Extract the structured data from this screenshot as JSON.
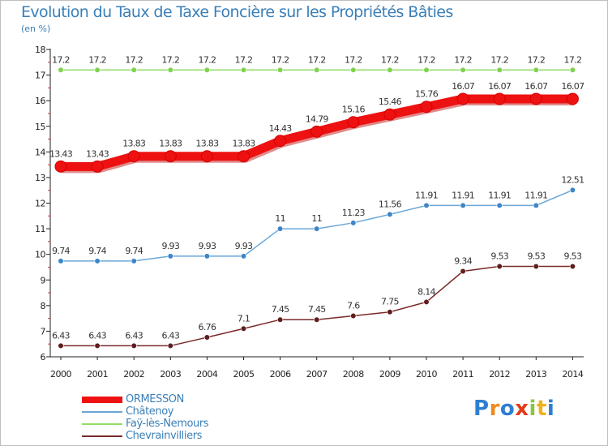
{
  "chart_data": {
    "type": "line",
    "title": "Evolution du Taux de Taxe Foncière sur les Propriétés Bâties",
    "ylabel": "(en %)",
    "xlabel": "",
    "ylim": [
      6,
      18
    ],
    "yticks": [
      6,
      7,
      8,
      9,
      10,
      11,
      12,
      13,
      14,
      15,
      16,
      17,
      18
    ],
    "categories": [
      "2000",
      "2001",
      "2002",
      "2003",
      "2004",
      "2005",
      "2006",
      "2007",
      "2008",
      "2009",
      "2010",
      "2011",
      "2012",
      "2013",
      "2014"
    ],
    "grid": false,
    "legend_position": "bottom-left",
    "series": [
      {
        "name": "ORMESSON",
        "color": "#ee1111",
        "marker": "#ee1111",
        "emphasis": true,
        "values": [
          13.43,
          13.43,
          13.83,
          13.83,
          13.83,
          13.83,
          14.43,
          14.79,
          15.16,
          15.46,
          15.76,
          16.07,
          16.07,
          16.07,
          16.07
        ],
        "labels": [
          "13.43",
          "13.43",
          "13.83",
          "13.83",
          "13.83",
          "13.83",
          "14.43",
          "14.79",
          "15.16",
          "15.46",
          "15.76",
          "16.07",
          "16.07",
          "16.07",
          "16.07"
        ]
      },
      {
        "name": "Châtenoy",
        "color": "#6aa7d8",
        "marker": "#3d86c6",
        "emphasis": false,
        "values": [
          9.74,
          9.74,
          9.74,
          9.93,
          9.93,
          9.93,
          11,
          11,
          11.23,
          11.56,
          11.91,
          11.91,
          11.91,
          11.91,
          12.51
        ],
        "labels": [
          "9.74",
          "9.74",
          "9.74",
          "9.93",
          "9.93",
          "9.93",
          "11",
          "11",
          "11.23",
          "11.56",
          "11.91",
          "11.91",
          "11.91",
          "11.91",
          "12.51"
        ]
      },
      {
        "name": "Faÿ-lès-Nemours",
        "color": "#90dd66",
        "marker": "#7fd24f",
        "emphasis": false,
        "values": [
          17.2,
          17.2,
          17.2,
          17.2,
          17.2,
          17.2,
          17.2,
          17.2,
          17.2,
          17.2,
          17.2,
          17.2,
          17.2,
          17.2,
          17.2
        ],
        "labels": [
          "17.2",
          "17.2",
          "17.2",
          "17.2",
          "17.2",
          "17.2",
          "17.2",
          "17.2",
          "17.2",
          "17.2",
          "17.2",
          "17.2",
          "17.2",
          "17.2",
          "17.2"
        ]
      },
      {
        "name": "Chevrainvilliers",
        "color": "#7a2a2a",
        "marker": "#5e1e1e",
        "emphasis": false,
        "values": [
          6.43,
          6.43,
          6.43,
          6.43,
          6.76,
          7.1,
          7.45,
          7.45,
          7.6,
          7.75,
          8.14,
          9.34,
          9.53,
          9.53,
          9.53
        ],
        "labels": [
          "6.43",
          "6.43",
          "6.43",
          "6.43",
          "6.76",
          "7.1",
          "7.45",
          "7.45",
          "7.6",
          "7.75",
          "8.14",
          "9.34",
          "9.53",
          "9.53",
          "9.53"
        ]
      }
    ]
  },
  "legend": {
    "items": [
      {
        "label": "ORMESSON",
        "color": "#ee1111"
      },
      {
        "label": "Châtenoy",
        "color": "#6aa7d8"
      },
      {
        "label": "Faÿ-lès-Nemours",
        "color": "#90dd66"
      },
      {
        "label": "Chevrainvilliers",
        "color": "#7a2a2a"
      }
    ]
  },
  "logo": {
    "text": "Proxiti",
    "colors": [
      "#2e7fd0",
      "#f08a1c",
      "#2e7fd0",
      "#e23a1a",
      "#8cc63e",
      "#f0b21c",
      "#2e7fd0"
    ]
  }
}
